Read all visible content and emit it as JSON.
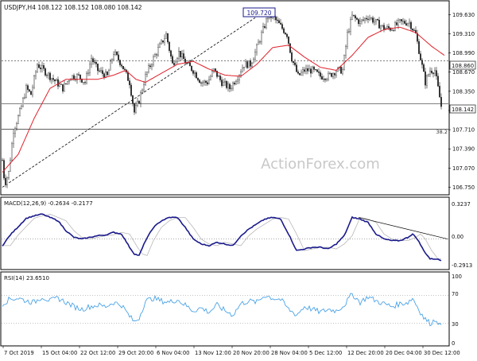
{
  "header": {
    "symbol_line": "USDJPY,H4  108.122 108.152 108.080 108.142"
  },
  "watermark": "ActionForex.com",
  "colors": {
    "candle": "#1c1c1c",
    "ma": "#e0202a",
    "macd": "#1a1a8c",
    "signal": "#b8b8b8",
    "rsi": "#4aa3e6",
    "trendline": "#000000",
    "level_line": "#000000",
    "axis_text": "#111111",
    "watermark": "#c8c8c8",
    "price_tag_border": "#1a1a8c"
  },
  "annotations": {
    "high_label": "109.720",
    "fib_label": "38.2",
    "price_box_1": "108.860",
    "price_box_2": "108.142"
  },
  "price_axis": {
    "ticks": [
      "109.630",
      "109.310",
      "108.990",
      "108.670",
      "108.350",
      "108.030",
      "107.710",
      "107.390",
      "107.070",
      "106.750"
    ]
  },
  "macd": {
    "label": "MACD(12,26,9) -0.2634 -0.2177",
    "axis": [
      "0.3237",
      "0.00",
      "-0.2913"
    ]
  },
  "rsi": {
    "label": "RSI(14) 23.6510",
    "axis": [
      "100",
      "70",
      "30",
      "0"
    ]
  },
  "time_axis": {
    "labels": [
      "7 Oct 2019",
      "15 Oct 04:00",
      "22 Oct 12:00",
      "29 Oct 20:00",
      "6 Nov 04:00",
      "13 Nov 12:00",
      "20 Nov 20:00",
      "28 Nov 04:00",
      "5 Dec 12:00",
      "12 Dec 20:00",
      "20 Dec 04:00",
      "30 Dec 12:00"
    ]
  },
  "chart_data": {
    "type": "candlestick",
    "price_keys": [
      [
        0,
        107.2
      ],
      [
        3,
        106.8
      ],
      [
        8,
        107.0
      ],
      [
        14,
        107.7
      ],
      [
        22,
        108.0
      ],
      [
        30,
        108.4
      ],
      [
        36,
        108.3
      ],
      [
        44,
        108.8
      ],
      [
        52,
        108.7
      ],
      [
        60,
        108.6
      ],
      [
        68,
        108.5
      ],
      [
        76,
        108.4
      ],
      [
        86,
        108.6
      ],
      [
        96,
        108.6
      ],
      [
        104,
        108.5
      ],
      [
        112,
        108.9
      ],
      [
        120,
        108.7
      ],
      [
        132,
        108.6
      ],
      [
        140,
        109.0
      ],
      [
        150,
        108.8
      ],
      [
        160,
        108.5
      ],
      [
        166,
        108.0
      ],
      [
        172,
        108.2
      ],
      [
        180,
        108.6
      ],
      [
        190,
        108.9
      ],
      [
        198,
        109.1
      ],
      [
        206,
        109.3
      ],
      [
        214,
        108.8
      ],
      [
        222,
        109.0
      ],
      [
        232,
        108.8
      ],
      [
        240,
        108.7
      ],
      [
        250,
        108.5
      ],
      [
        258,
        108.5
      ],
      [
        266,
        108.7
      ],
      [
        276,
        108.5
      ],
      [
        286,
        108.4
      ],
      [
        296,
        108.6
      ],
      [
        304,
        108.8
      ],
      [
        312,
        108.8
      ],
      [
        318,
        109.0
      ],
      [
        326,
        109.3
      ],
      [
        334,
        109.6
      ],
      [
        340,
        109.6
      ],
      [
        346,
        109.5
      ],
      [
        352,
        109.4
      ],
      [
        358,
        109.3
      ],
      [
        364,
        108.9
      ],
      [
        372,
        108.6
      ],
      [
        380,
        108.7
      ],
      [
        390,
        108.7
      ],
      [
        400,
        108.6
      ],
      [
        410,
        108.6
      ],
      [
        420,
        108.7
      ],
      [
        428,
        108.7
      ],
      [
        434,
        109.3
      ],
      [
        440,
        109.6
      ],
      [
        450,
        109.5
      ],
      [
        460,
        109.6
      ],
      [
        470,
        109.5
      ],
      [
        480,
        109.4
      ],
      [
        490,
        109.4
      ],
      [
        500,
        109.5
      ],
      [
        506,
        109.5
      ],
      [
        512,
        109.5
      ],
      [
        520,
        109.3
      ],
      [
        526,
        108.9
      ],
      [
        532,
        108.5
      ],
      [
        538,
        108.7
      ],
      [
        544,
        108.7
      ],
      [
        548,
        108.4
      ],
      [
        552,
        108.1
      ]
    ],
    "rsi_keys": [
      [
        0,
        58
      ],
      [
        10,
        65
      ],
      [
        20,
        66
      ],
      [
        30,
        62
      ],
      [
        40,
        60
      ],
      [
        50,
        68
      ],
      [
        60,
        62
      ],
      [
        70,
        66
      ],
      [
        80,
        60
      ],
      [
        90,
        54
      ],
      [
        100,
        50
      ],
      [
        110,
        54
      ],
      [
        120,
        56
      ],
      [
        130,
        54
      ],
      [
        140,
        60
      ],
      [
        150,
        56
      ],
      [
        160,
        40
      ],
      [
        166,
        32
      ],
      [
        172,
        38
      ],
      [
        180,
        62
      ],
      [
        190,
        66
      ],
      [
        200,
        62
      ],
      [
        210,
        60
      ],
      [
        220,
        64
      ],
      [
        230,
        56
      ],
      [
        240,
        48
      ],
      [
        250,
        52
      ],
      [
        260,
        46
      ],
      [
        270,
        56
      ],
      [
        280,
        48
      ],
      [
        290,
        42
      ],
      [
        300,
        58
      ],
      [
        310,
        62
      ],
      [
        320,
        60
      ],
      [
        330,
        70
      ],
      [
        340,
        66
      ],
      [
        350,
        64
      ],
      [
        360,
        50
      ],
      [
        370,
        42
      ],
      [
        380,
        54
      ],
      [
        390,
        50
      ],
      [
        400,
        46
      ],
      [
        410,
        50
      ],
      [
        420,
        48
      ],
      [
        430,
        56
      ],
      [
        440,
        72
      ],
      [
        450,
        60
      ],
      [
        460,
        68
      ],
      [
        470,
        62
      ],
      [
        480,
        58
      ],
      [
        490,
        54
      ],
      [
        500,
        58
      ],
      [
        510,
        60
      ],
      [
        516,
        66
      ],
      [
        522,
        54
      ],
      [
        530,
        38
      ],
      [
        538,
        30
      ],
      [
        546,
        36
      ],
      [
        552,
        24
      ]
    ],
    "macd_keys": [
      [
        0,
        -0.08
      ],
      [
        10,
        0.05
      ],
      [
        20,
        0.15
      ],
      [
        30,
        0.25
      ],
      [
        40,
        0.28
      ],
      [
        50,
        0.3
      ],
      [
        60,
        0.26
      ],
      [
        70,
        0.22
      ],
      [
        80,
        0.1
      ],
      [
        90,
        0.02
      ],
      [
        100,
        0.0
      ],
      [
        110,
        0.02
      ],
      [
        120,
        0.04
      ],
      [
        130,
        0.05
      ],
      [
        140,
        0.08
      ],
      [
        150,
        0.06
      ],
      [
        160,
        -0.1
      ],
      [
        166,
        -0.18
      ],
      [
        172,
        -0.2
      ],
      [
        180,
        -0.02
      ],
      [
        190,
        0.14
      ],
      [
        200,
        0.22
      ],
      [
        210,
        0.26
      ],
      [
        220,
        0.26
      ],
      [
        230,
        0.14
      ],
      [
        240,
        0.0
      ],
      [
        250,
        -0.06
      ],
      [
        260,
        -0.08
      ],
      [
        270,
        -0.04
      ],
      [
        280,
        -0.06
      ],
      [
        290,
        -0.08
      ],
      [
        300,
        0.04
      ],
      [
        310,
        0.12
      ],
      [
        320,
        0.18
      ],
      [
        330,
        0.24
      ],
      [
        340,
        0.26
      ],
      [
        350,
        0.24
      ],
      [
        360,
        0.06
      ],
      [
        370,
        -0.14
      ],
      [
        380,
        -0.12
      ],
      [
        390,
        -0.1
      ],
      [
        400,
        -0.1
      ],
      [
        410,
        -0.12
      ],
      [
        420,
        -0.06
      ],
      [
        430,
        0.04
      ],
      [
        440,
        0.26
      ],
      [
        450,
        0.24
      ],
      [
        460,
        0.2
      ],
      [
        470,
        0.06
      ],
      [
        480,
        0.0
      ],
      [
        490,
        -0.02
      ],
      [
        500,
        -0.02
      ],
      [
        510,
        0.02
      ],
      [
        516,
        0.06
      ],
      [
        522,
        0.0
      ],
      [
        530,
        -0.14
      ],
      [
        538,
        -0.24
      ],
      [
        546,
        -0.24
      ],
      [
        552,
        -0.26
      ]
    ],
    "ma_keys": [
      [
        0,
        107.0
      ],
      [
        20,
        107.3
      ],
      [
        40,
        107.9
      ],
      [
        60,
        108.4
      ],
      [
        80,
        108.55
      ],
      [
        100,
        108.55
      ],
      [
        120,
        108.55
      ],
      [
        140,
        108.62
      ],
      [
        155,
        108.7
      ],
      [
        168,
        108.55
      ],
      [
        180,
        108.5
      ],
      [
        200,
        108.65
      ],
      [
        220,
        108.8
      ],
      [
        240,
        108.85
      ],
      [
        260,
        108.72
      ],
      [
        280,
        108.62
      ],
      [
        300,
        108.6
      ],
      [
        320,
        108.8
      ],
      [
        340,
        109.08
      ],
      [
        360,
        109.12
      ],
      [
        380,
        108.92
      ],
      [
        400,
        108.75
      ],
      [
        420,
        108.7
      ],
      [
        440,
        108.95
      ],
      [
        460,
        109.25
      ],
      [
        480,
        109.38
      ],
      [
        500,
        109.42
      ],
      [
        520,
        109.33
      ],
      [
        540,
        109.1
      ],
      [
        556,
        108.95
      ]
    ],
    "trendline": {
      "from": [
        106.75,
        0
      ],
      "to": [
        109.72,
        334
      ]
    },
    "level_lines": [
      108.86,
      108.142,
      107.72
    ],
    "price_range": [
      106.65,
      109.82
    ],
    "macd_range": [
      -0.34,
      0.37
    ],
    "rsi_range": [
      0,
      100
    ]
  }
}
